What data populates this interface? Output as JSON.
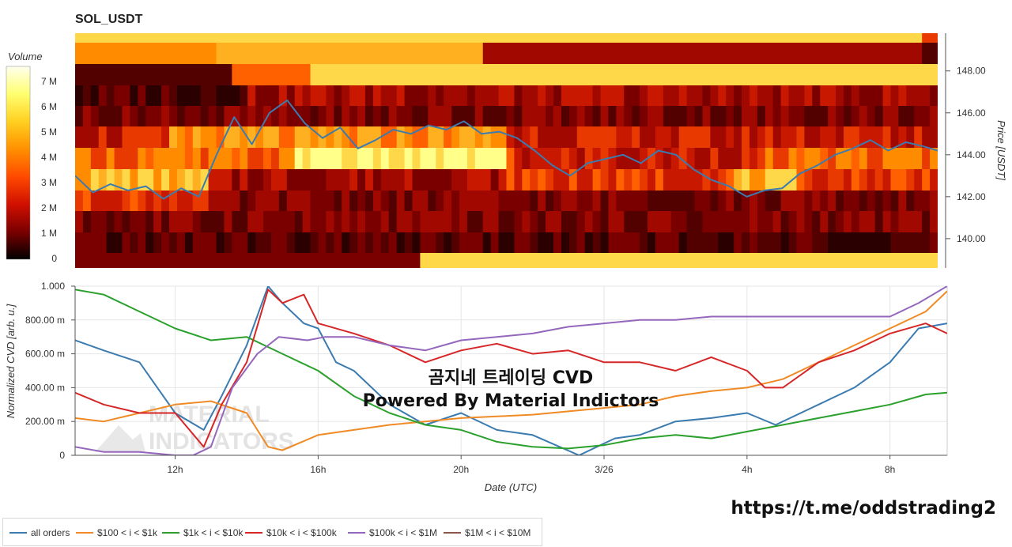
{
  "title": "SOL_USDT",
  "colorbar": {
    "title": "Volume",
    "ticks": [
      "0",
      "1 M",
      "2 M",
      "3 M",
      "4 M",
      "5 M",
      "6 M",
      "7 M"
    ],
    "stops": [
      "#000000",
      "#7a0000",
      "#d11000",
      "#ff4a00",
      "#ff9000",
      "#ffd020",
      "#ffff70",
      "#ffffee"
    ]
  },
  "overlay_line1": "곰지네 트레이딩 CVD",
  "overlay_line2": "Powered By Material Indictors",
  "watermark": "MATERIAL INDICATORS",
  "link_text": "https://t.me/oddstrading2",
  "chart_data": [
    {
      "type": "heatmap",
      "title": "SOL_USDT",
      "ylabel": "Price [USDT]",
      "yticks": [
        "140.00",
        "142.00",
        "144.00",
        "146.00",
        "148.00"
      ],
      "ylim": [
        138.6,
        149.8
      ],
      "x_range_hours_utc": [
        "3/25 09:10",
        "3/26 09:35"
      ],
      "price_series": {
        "name": "price",
        "color": "#3b7bb0",
        "t": [
          0,
          0.5,
          1,
          1.5,
          2,
          2.5,
          3,
          3.5,
          4,
          4.5,
          5,
          5.5,
          6,
          6.5,
          7,
          7.5,
          8,
          8.5,
          9,
          9.5,
          10,
          10.5,
          11,
          11.5,
          12,
          12.5,
          13,
          13.5,
          14,
          14.5,
          15,
          15.5,
          16,
          16.5,
          17,
          17.5,
          18,
          18.5,
          19,
          19.5,
          20,
          20.5,
          21,
          21.5,
          22,
          22.5,
          23,
          23.5,
          24,
          24.4
        ],
        "price": [
          143.0,
          142.2,
          142.6,
          142.3,
          142.5,
          141.9,
          142.4,
          142.0,
          144.0,
          145.8,
          144.5,
          146.0,
          146.6,
          145.5,
          144.8,
          145.3,
          144.3,
          144.7,
          145.2,
          145.0,
          145.4,
          145.2,
          145.6,
          145.0,
          145.1,
          144.8,
          144.2,
          143.5,
          143.0,
          143.6,
          143.8,
          144.0,
          143.6,
          144.2,
          144.0,
          143.3,
          142.8,
          142.5,
          142.0,
          142.3,
          142.4,
          143.1,
          143.5,
          144.0,
          144.3,
          144.7,
          144.2,
          144.6,
          144.4,
          144.2
        ]
      }
    },
    {
      "type": "line",
      "xlabel": "Date (UTC)",
      "ylabel": "Normalized CVD [arb. u.]",
      "ylim": [
        0,
        1.0
      ],
      "yticks": [
        "0",
        "200.00 m",
        "400.00 m",
        "600.00 m",
        "800.00 m",
        "1.000"
      ],
      "xticks": [
        "12h",
        "16h",
        "20h",
        "3/26",
        "4h",
        "8h"
      ],
      "series": [
        {
          "name": "all orders",
          "color": "#3b7bb0",
          "x": [
            9.2,
            10,
            11,
            12,
            12.8,
            13.3,
            14,
            14.6,
            15,
            15.6,
            16,
            16.5,
            17,
            18,
            19,
            20,
            21,
            22,
            23.3,
            24.3,
            25,
            26,
            27,
            28,
            28.8,
            30,
            31,
            32,
            32.8,
            33.6
          ],
          "y": [
            0.68,
            0.62,
            0.55,
            0.25,
            0.15,
            0.35,
            0.65,
            1.0,
            0.9,
            0.78,
            0.75,
            0.55,
            0.5,
            0.3,
            0.18,
            0.25,
            0.15,
            0.12,
            0.0,
            0.1,
            0.12,
            0.2,
            0.22,
            0.25,
            0.18,
            0.3,
            0.4,
            0.55,
            0.75,
            0.78
          ]
        },
        {
          "name": "$100 < i < $1k",
          "color": "#f08a24",
          "x": [
            9.2,
            10,
            11,
            12,
            13,
            14,
            14.6,
            15,
            16,
            17,
            18,
            19,
            20,
            21,
            22,
            23,
            24,
            25,
            26,
            27,
            28,
            29,
            30,
            31,
            32,
            33,
            33.6
          ],
          "y": [
            0.22,
            0.2,
            0.25,
            0.3,
            0.32,
            0.25,
            0.05,
            0.03,
            0.12,
            0.15,
            0.18,
            0.2,
            0.22,
            0.23,
            0.24,
            0.26,
            0.28,
            0.3,
            0.35,
            0.38,
            0.4,
            0.45,
            0.55,
            0.65,
            0.75,
            0.85,
            0.97
          ]
        },
        {
          "name": "$1k < i < $10k",
          "color": "#2ca02c",
          "x": [
            9.2,
            10,
            11,
            12,
            13,
            14,
            15,
            16,
            17,
            18,
            19,
            20,
            21,
            22,
            23,
            24,
            25,
            26,
            27,
            28,
            29,
            30,
            31,
            32,
            33,
            33.6
          ],
          "y": [
            0.98,
            0.95,
            0.85,
            0.75,
            0.68,
            0.7,
            0.6,
            0.5,
            0.35,
            0.25,
            0.18,
            0.15,
            0.08,
            0.05,
            0.04,
            0.06,
            0.1,
            0.12,
            0.1,
            0.14,
            0.18,
            0.22,
            0.26,
            0.3,
            0.36,
            0.37
          ]
        },
        {
          "name": "$10k < i < $100k",
          "color": "#d62728",
          "x": [
            9.2,
            10,
            11,
            12,
            12.8,
            13.3,
            14,
            14.6,
            15,
            15.6,
            16,
            17,
            18,
            19,
            20,
            21,
            22,
            23,
            24,
            25,
            26,
            27,
            28,
            28.5,
            29,
            30,
            31,
            32,
            33,
            33.6
          ],
          "y": [
            0.37,
            0.3,
            0.25,
            0.25,
            0.05,
            0.3,
            0.55,
            0.98,
            0.9,
            0.95,
            0.78,
            0.72,
            0.65,
            0.55,
            0.62,
            0.66,
            0.6,
            0.62,
            0.55,
            0.55,
            0.5,
            0.58,
            0.5,
            0.4,
            0.4,
            0.55,
            0.62,
            0.72,
            0.78,
            0.72
          ]
        },
        {
          "name": "$100k < i < $1M",
          "color": "#9467bd",
          "x": [
            9.2,
            10,
            11,
            12,
            12.5,
            13,
            13.6,
            14.3,
            14.9,
            15.7,
            16.2,
            17,
            18,
            19,
            20,
            21,
            22,
            23,
            24,
            25,
            26,
            27,
            28,
            29,
            30,
            31,
            32,
            32.8,
            33.6
          ],
          "y": [
            0.05,
            0.02,
            0.02,
            0.0,
            0.0,
            0.05,
            0.4,
            0.6,
            0.7,
            0.68,
            0.7,
            0.7,
            0.65,
            0.62,
            0.68,
            0.7,
            0.72,
            0.76,
            0.78,
            0.8,
            0.8,
            0.82,
            0.82,
            0.82,
            0.82,
            0.82,
            0.82,
            0.9,
            1.0
          ]
        },
        {
          "name": "$1M < i < $10M",
          "color": "#8c564b",
          "x": [],
          "y": []
        }
      ]
    }
  ]
}
